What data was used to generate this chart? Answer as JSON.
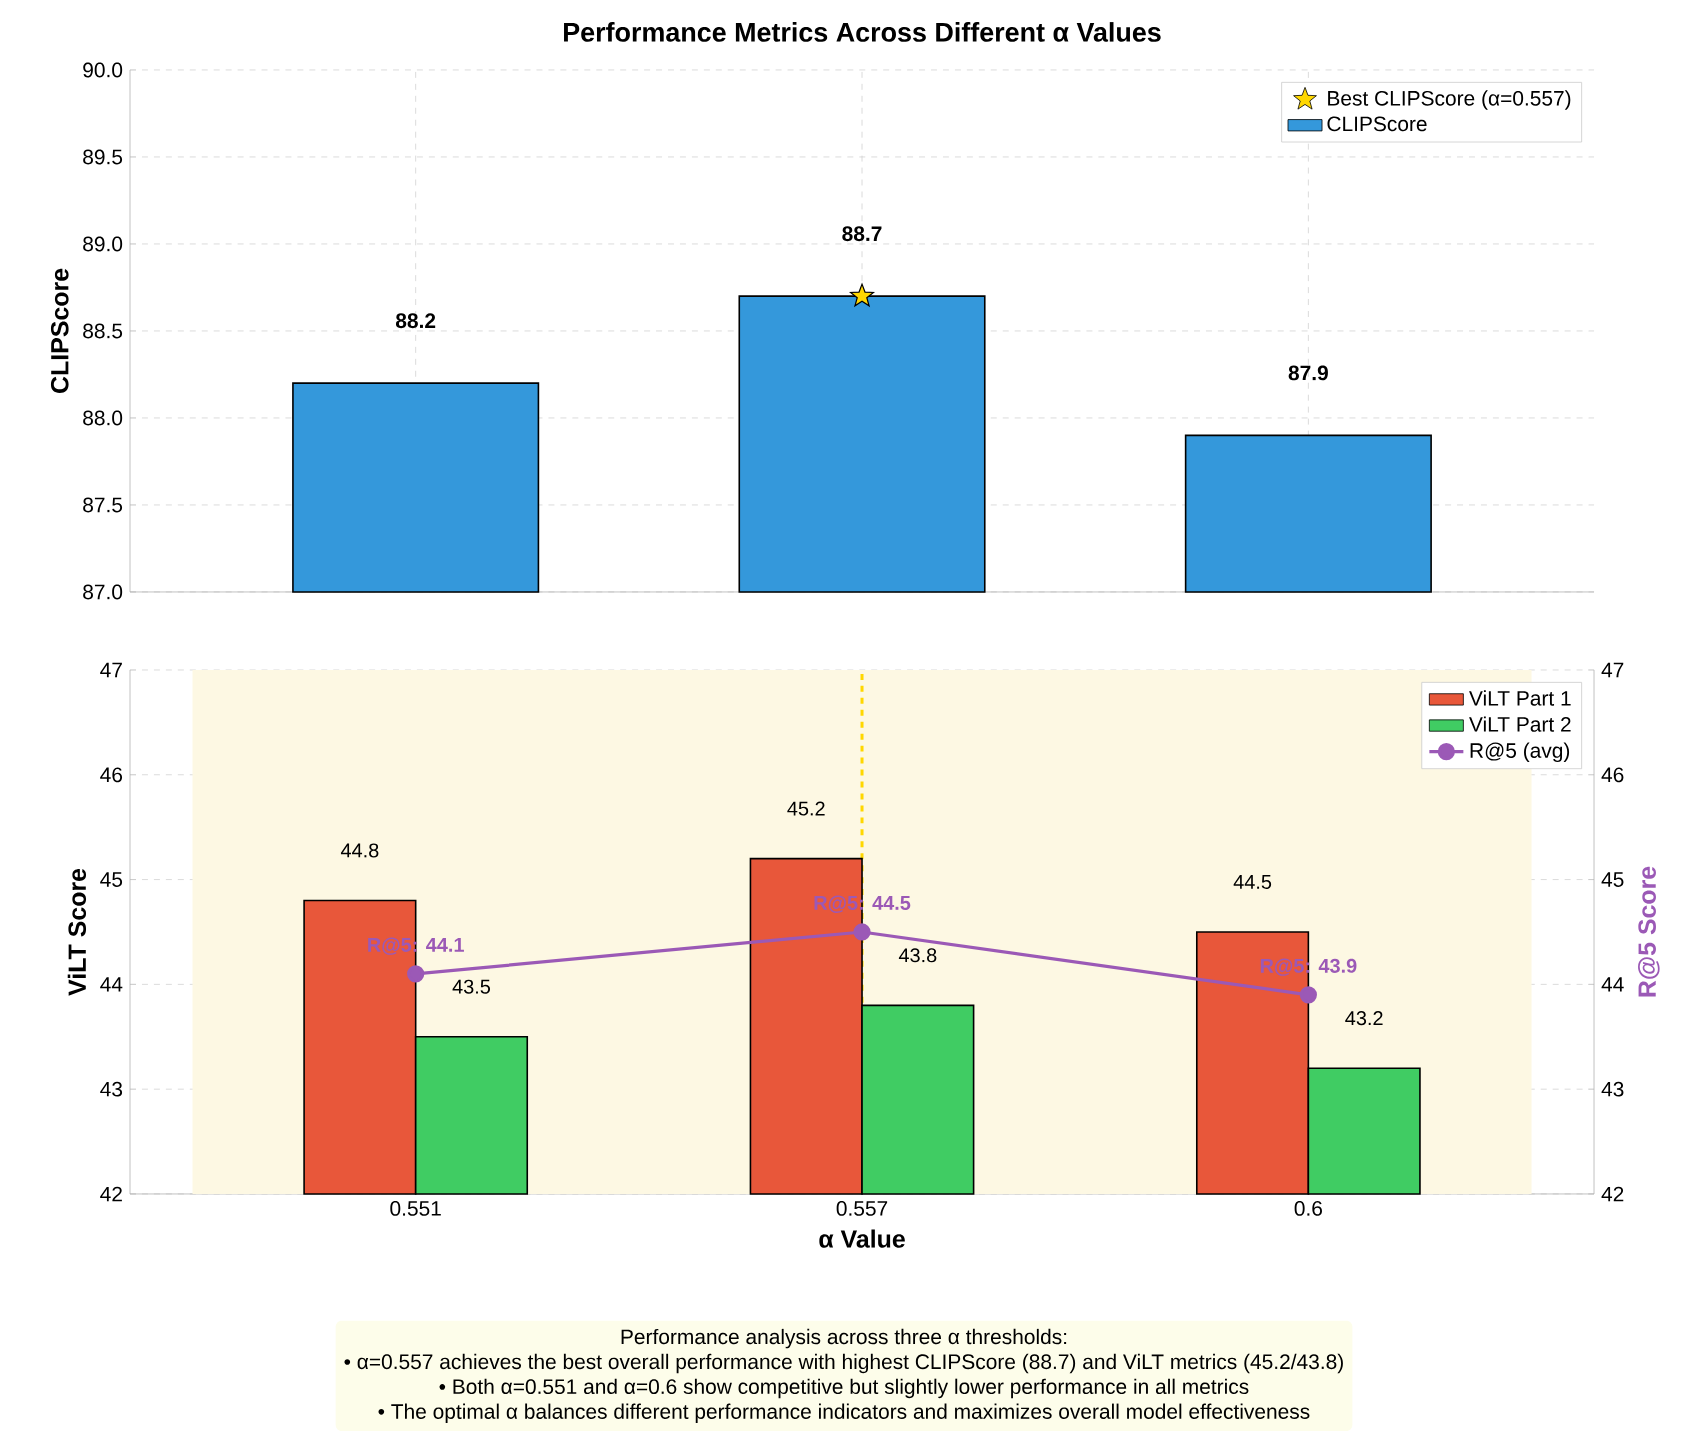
{
  "chart_data": [
    {
      "type": "bar",
      "title": "Performance Metrics Across Different α Values",
      "ylabel": "CLIPScore",
      "categories": [
        "0.551",
        "0.557",
        "0.6"
      ],
      "tick_labels": "y",
      "ylim": [
        87,
        90
      ],
      "yticks": [
        {
          "value": 87,
          "label": "87.0"
        },
        {
          "value": 87.5,
          "label": "87.5"
        },
        {
          "value": 88,
          "label": "88.0"
        },
        {
          "value": 88.5,
          "label": "88.5"
        },
        {
          "value": 89,
          "label": "89.0"
        },
        {
          "value": 89.5,
          "label": "89.5"
        },
        {
          "value": 90,
          "label": "90.0"
        }
      ],
      "grid": true,
      "legend": "top right",
      "series": [
        {
          "name": "Best CLIPScore (α=0.557)",
          "type": "scatter",
          "x": [
            "0.557"
          ],
          "values": [
            88.7
          ],
          "color": "#ffd700",
          "marker": "star"
        },
        {
          "name": "CLIPScore",
          "color": "#3498db",
          "values": [
            88.2,
            88.7,
            87.9
          ],
          "value_labels": [
            "88.2",
            "88.7",
            "87.9"
          ]
        }
      ]
    },
    {
      "type": "bar",
      "xlabel": "α Value",
      "ylabel": "ViLT Score",
      "y2label": "R@5 Score",
      "categories": [
        "0.551",
        "0.557",
        "0.6"
      ],
      "ylim": [
        42,
        47
      ],
      "yticks": [
        42,
        43,
        44,
        45,
        46,
        47
      ],
      "y2lim": [
        42,
        47
      ],
      "y2ticks": [
        42,
        43,
        44,
        45,
        46,
        47
      ],
      "grid": true,
      "legend": "top right",
      "bands": [
        {
          "axis": "x",
          "from": "0.551",
          "to": "0.6",
          "color": "#fdf8e3"
        }
      ],
      "ref_lines": [
        {
          "axis": "x",
          "value": "0.557",
          "color": "#ffd700",
          "line_style": "dashed"
        }
      ],
      "series": [
        {
          "name": "ViLT Part 1",
          "color": "#e8573a",
          "values": [
            44.8,
            45.2,
            44.5
          ],
          "value_labels": [
            "44.8",
            "45.2",
            "44.5"
          ]
        },
        {
          "name": "ViLT Part 2",
          "color": "#40cc63",
          "values": [
            43.5,
            43.8,
            43.2
          ],
          "value_labels": [
            "43.5",
            "43.8",
            "43.2"
          ]
        },
        {
          "name": "R@5 (avg)",
          "type": "line",
          "axis": "y2",
          "color": "#9b59b6",
          "marker": "circle",
          "values": [
            44.1,
            44.5,
            43.9
          ],
          "value_labels": [
            "R@5: 44.1",
            "R@5: 44.5",
            "R@5: 43.9"
          ]
        }
      ],
      "annotations": [
        "Performance analysis across three α thresholds:",
        "• α=0.557 achieves the best overall performance with highest CLIPScore (88.7) and ViLT metrics (45.2/43.8)",
        "• Both α=0.551 and α=0.6 show competitive but slightly lower performance in all metrics",
        "• The optimal α balances different performance indicators and maximizes overall model effectiveness"
      ]
    }
  ]
}
